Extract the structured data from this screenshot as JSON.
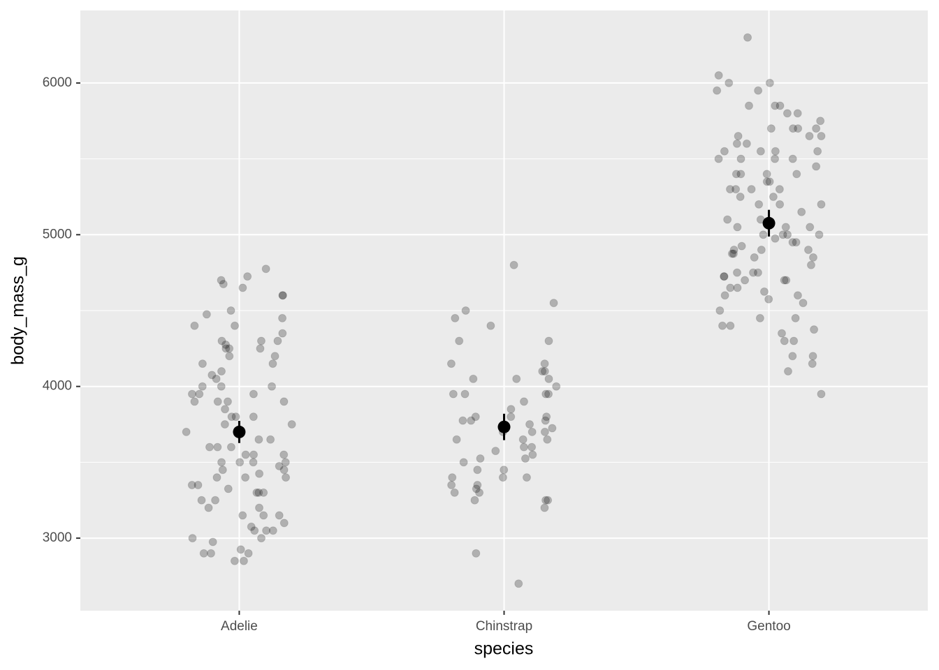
{
  "chart_data": {
    "type": "strip",
    "x_label": "species",
    "y_label": "body_mass_g",
    "categories": [
      "Adelie",
      "Chinstrap",
      "Gentoo"
    ],
    "points": [
      [
        3700,
        3550,
        3400,
        3200,
        3150,
        4650,
        4700,
        4775,
        3050,
        2850,
        3650,
        3550,
        4150,
        4075,
        4250,
        4300,
        4250,
        3350,
        3300,
        3800,
        3900,
        4000,
        3950,
        3700,
        3450,
        3200,
        3050,
        4725,
        4600,
        4350,
        4275,
        4300,
        4200,
        4100,
        4000,
        3900,
        3800,
        3600,
        3500,
        3400,
        3300,
        3150,
        3000,
        3250,
        3550,
        3700,
        4500,
        4475,
        4600,
        3950,
        3850,
        3450,
        3300,
        3100,
        2925,
        2900,
        4250,
        4050,
        3750,
        3600,
        3500,
        3150,
        3075,
        2900,
        4450,
        4400,
        4300,
        3950,
        3800,
        3700,
        3500,
        3425,
        3400,
        3325,
        3000,
        2975,
        2900,
        4675,
        4000,
        3900,
        3650,
        3475,
        3350,
        3050,
        4400,
        4200,
        4150,
        3900,
        3750,
        3600,
        3500,
        3250,
        2850
      ],
      [
        4800,
        4500,
        4300,
        4100,
        3775,
        3700,
        3650,
        3600,
        3525,
        3400,
        3350,
        4300,
        4150,
        4050,
        3800,
        3750,
        3700,
        3600,
        3325,
        3200,
        2900,
        4400,
        3950,
        3500,
        3400,
        3350,
        3250,
        2700,
        4050,
        3950,
        3800,
        3775,
        4550,
        3850,
        3650,
        3300,
        3250,
        4050,
        3800,
        3650,
        3550,
        3525,
        3400,
        3450,
        3300,
        3775,
        3950,
        3950,
        3900,
        3250,
        4450,
        4150,
        4100,
        4000,
        3725,
        3700,
        3575,
        3450
      ],
      [
        5700,
        5650,
        5950,
        5400,
        5200,
        5050,
        4975,
        4750,
        4350,
        4300,
        5300,
        5500,
        5550,
        5600,
        5850,
        5750,
        5650,
        5000,
        4900,
        4850,
        4750,
        4700,
        4650,
        4575,
        5850,
        5800,
        5450,
        5350,
        5300,
        5000,
        4875,
        4700,
        5700,
        5550,
        5350,
        4950,
        4850,
        4450,
        6050,
        6300,
        5250,
        4650,
        4200,
        5600,
        5500,
        5050,
        4900,
        4725,
        4600,
        4550,
        4200,
        4150,
        4100,
        5550,
        5500,
        5400,
        5300,
        4950,
        4800,
        4500,
        4400,
        5550,
        5100,
        4600,
        5950,
        5850,
        5700,
        5400,
        5300,
        5050,
        5000,
        4925,
        4625,
        5200,
        5100,
        5800,
        5700,
        4750,
        4450,
        4400,
        5250,
        5150,
        5000,
        4875,
        4375,
        6000,
        6000,
        5650,
        5200,
        4900,
        4725,
        4700,
        4300,
        5500,
        5400,
        3950
      ]
    ],
    "means": [
      3700,
      3733,
      5076
    ],
    "errors": [
      73,
      87,
      88
    ],
    "point_color": "#000000",
    "mean_color": "#000000",
    "ylim": [
      2522,
      6478
    ],
    "yticks": [
      3000,
      4000,
      5000,
      6000
    ],
    "grid": true
  }
}
